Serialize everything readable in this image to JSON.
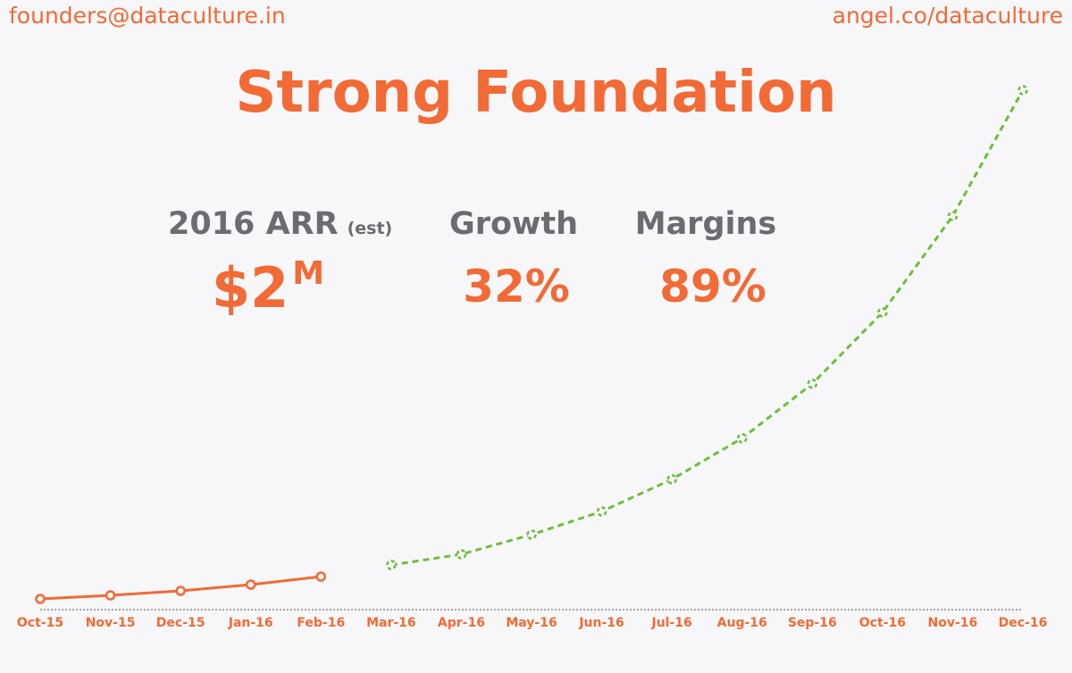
{
  "header": {
    "email": "founders@dataculture.in",
    "site": "angel.co/dataculture"
  },
  "title": "Strong Foundation",
  "stats": [
    {
      "label": "2016 ARR",
      "note": "(est)",
      "value": "$2",
      "unit": "M"
    },
    {
      "label": "Growth",
      "value": "32%"
    },
    {
      "label": "Margins",
      "value": "89%"
    }
  ],
  "chart_data": {
    "type": "line",
    "categories": [
      "Oct-15",
      "Nov-15",
      "Dec-15",
      "Jan-16",
      "Feb-16",
      "Mar-16",
      "Apr-16",
      "May-16",
      "Jun-16",
      "Jul-16",
      "Aug-16",
      "Sep-16",
      "Oct-16",
      "Nov-16",
      "Dec-16"
    ],
    "series": [
      {
        "color": "#f26a35",
        "dash": false,
        "values": [
          12,
          16,
          21,
          28,
          37,
          null,
          null,
          null,
          null,
          null,
          null,
          null,
          null,
          null,
          null
        ]
      },
      {
        "color": "#6cbf3a",
        "dash": true,
        "values": [
          null,
          null,
          null,
          null,
          null,
          50,
          62,
          84,
          110,
          146,
          192,
          253,
          333,
          441,
          582
        ]
      }
    ],
    "ylim": [
      0,
      600
    ]
  }
}
